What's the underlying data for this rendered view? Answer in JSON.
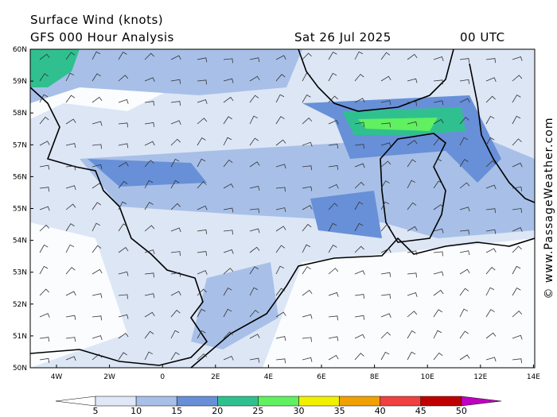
{
  "header": {
    "title": "Surface Wind (knots)",
    "subtitle": "GFS 000 Hour Analysis",
    "date": "Sat 26 Jul 2025",
    "time": "00 UTC"
  },
  "map": {
    "lat_labels": [
      "60N",
      "59N",
      "58N",
      "57N",
      "56N",
      "55N",
      "54N",
      "53N",
      "52N",
      "51N",
      "50N"
    ],
    "lon_labels": [
      "4W",
      "2W",
      "0",
      "2E",
      "4E",
      "6E",
      "8E",
      "10E",
      "12E",
      "14E"
    ]
  },
  "legend": {
    "labels": [
      5,
      10,
      15,
      20,
      25,
      30,
      35,
      40,
      45,
      50
    ]
  },
  "watermark": "© www.PassageWeather.com"
}
